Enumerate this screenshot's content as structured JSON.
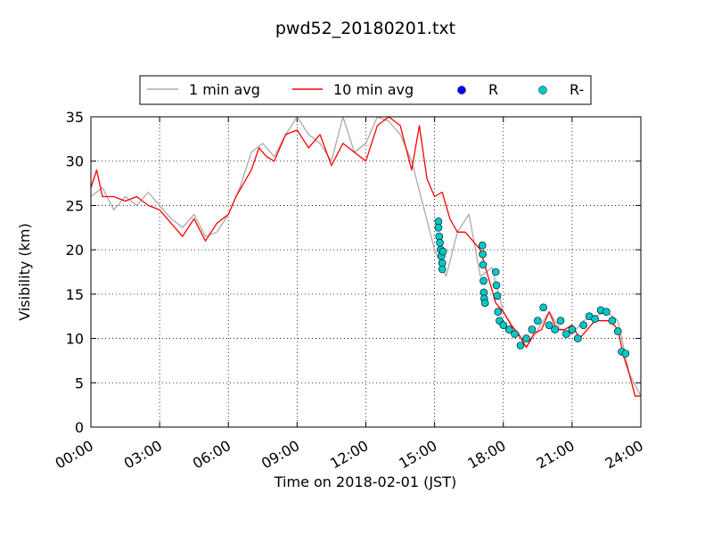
{
  "chart_data": {
    "type": "line",
    "title": "pwd52_20180201.txt",
    "xlabel": "Time on 2018-02-01 (JST)",
    "ylabel": "Visibility (km)",
    "xlim": [
      "00:00",
      "24:00"
    ],
    "ylim": [
      0,
      35
    ],
    "grid": true,
    "legend_position": "top-center",
    "x_tick_labels": [
      "00:00",
      "03:00",
      "06:00",
      "09:00",
      "12:00",
      "15:00",
      "18:00",
      "21:00",
      "24:00"
    ],
    "y_tick_labels": [
      "0",
      "5",
      "10",
      "15",
      "20",
      "25",
      "30",
      "35"
    ],
    "legend": [
      "1 min avg",
      "10 min avg",
      "R",
      "R-"
    ],
    "series": [
      {
        "name": "1 min avg",
        "kind": "line",
        "color": "#aaaaaa",
        "x": [
          "00:00",
          "00:30",
          "01:00",
          "01:30",
          "02:00",
          "02:30",
          "03:00",
          "03:30",
          "04:00",
          "04:30",
          "05:00",
          "05:30",
          "06:00",
          "06:30",
          "07:00",
          "07:30",
          "08:00",
          "08:30",
          "09:00",
          "09:30",
          "10:00",
          "10:30",
          "11:00",
          "11:30",
          "12:00",
          "12:30",
          "13:00",
          "13:30",
          "14:00",
          "14:30",
          "15:00",
          "15:30",
          "16:00",
          "16:30",
          "17:00",
          "17:30",
          "18:00",
          "18:30",
          "19:00",
          "19:30",
          "20:00",
          "20:30",
          "21:00",
          "21:30",
          "22:00",
          "22:30",
          "23:00",
          "23:30",
          "24:00"
        ],
        "y": [
          26,
          27,
          24.5,
          26,
          25,
          26.5,
          25,
          23.5,
          22.5,
          24,
          21.5,
          22,
          24,
          27,
          31,
          32,
          30.5,
          33,
          35,
          33,
          32,
          30,
          35,
          31,
          32,
          35,
          34.5,
          33,
          30,
          25,
          20,
          17,
          22,
          24,
          17,
          18,
          13,
          11,
          9,
          11,
          13,
          11,
          10.5,
          12,
          12.5,
          13,
          12,
          6,
          3.5
        ]
      },
      {
        "name": "10 min avg",
        "kind": "line",
        "color": "#ff0000",
        "x": [
          "00:00",
          "00:15",
          "00:20",
          "00:30",
          "01:00",
          "01:30",
          "02:00",
          "02:30",
          "03:00",
          "03:30",
          "04:00",
          "04:30",
          "05:00",
          "05:30",
          "06:00",
          "06:20",
          "06:40",
          "07:00",
          "07:20",
          "07:40",
          "08:00",
          "08:30",
          "09:00",
          "09:30",
          "10:00",
          "10:30",
          "11:00",
          "11:30",
          "12:00",
          "12:30",
          "13:00",
          "13:30",
          "14:00",
          "14:20",
          "14:40",
          "15:00",
          "15:20",
          "15:40",
          "16:00",
          "16:20",
          "16:40",
          "17:00",
          "17:20",
          "17:40",
          "18:00",
          "18:20",
          "18:40",
          "19:00",
          "19:20",
          "19:40",
          "20:00",
          "20:20",
          "20:40",
          "21:00",
          "21:20",
          "21:40",
          "22:00",
          "22:20",
          "22:40",
          "23:00",
          "23:15",
          "23:30",
          "23:45",
          "24:00"
        ],
        "y": [
          27,
          29,
          28,
          26,
          26,
          25.5,
          26,
          25,
          24.5,
          23,
          21.5,
          23.5,
          21,
          23,
          24,
          26,
          27.5,
          29,
          31.5,
          30.5,
          30,
          33,
          33.5,
          31.5,
          33,
          29.5,
          32,
          31,
          30,
          34,
          35,
          34,
          29,
          34,
          28,
          26,
          26.5,
          23.5,
          22,
          22,
          21,
          20,
          17,
          14,
          13,
          11.5,
          10.5,
          9,
          10.5,
          11,
          13,
          11,
          11,
          11.5,
          10,
          11,
          12,
          12,
          12,
          11,
          8,
          6,
          3.5,
          3.5
        ]
      },
      {
        "name": "R",
        "kind": "scatter",
        "color": "#0000ff",
        "x": [],
        "y": []
      },
      {
        "name": "R-",
        "kind": "scatter",
        "color": "#00c8c8",
        "x": [
          "15:10",
          "15:10",
          "15:12",
          "15:14",
          "15:16",
          "15:18",
          "15:20",
          "15:20",
          "15:22",
          "17:05",
          "17:06",
          "17:07",
          "17:08",
          "17:09",
          "17:10",
          "17:12",
          "17:40",
          "17:42",
          "17:44",
          "17:46",
          "17:50",
          "18:00",
          "18:15",
          "18:30",
          "18:45",
          "19:00",
          "19:15",
          "19:30",
          "19:45",
          "20:00",
          "20:15",
          "20:30",
          "20:45",
          "21:00",
          "21:15",
          "21:30",
          "21:45",
          "22:00",
          "22:15",
          "22:30",
          "22:45",
          "23:00",
          "23:10",
          "23:20"
        ],
        "y": [
          23.2,
          22.5,
          21.5,
          20.8,
          20,
          19.3,
          18.5,
          17.8,
          19.8,
          20.5,
          19.5,
          18.3,
          16.5,
          15.2,
          14.5,
          14,
          17.5,
          16,
          14.8,
          13,
          12,
          11.5,
          11,
          10.5,
          9.2,
          10,
          11,
          12,
          13.5,
          11.5,
          11,
          12,
          10.5,
          11,
          10,
          11.5,
          12.5,
          12.2,
          13.2,
          13,
          12,
          10.8,
          8.5,
          8.3
        ]
      }
    ]
  }
}
